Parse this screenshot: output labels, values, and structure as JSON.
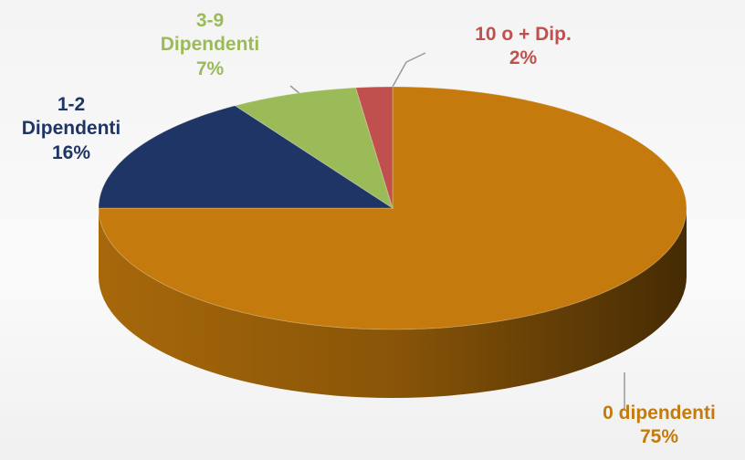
{
  "chart_data": {
    "type": "pie",
    "categories": [
      "0 dipendenti",
      "1-2 Dipendenti",
      "3-9 Dipendenti",
      "10 o + Dip."
    ],
    "values": [
      75,
      16,
      7,
      2
    ],
    "value_labels": [
      "75%",
      "16%",
      "7%",
      "2%"
    ],
    "colors": [
      "#c47a0c",
      "#1f3566",
      "#9bbb59",
      "#c0504d"
    ]
  }
}
